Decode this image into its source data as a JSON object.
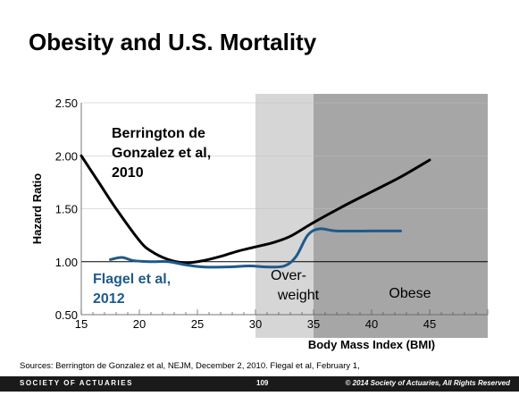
{
  "slide": {
    "title": "Obesity and U.S. Mortality",
    "sources": "Sources:  Berrington de Gonzalez  et al, NEJM, December  2, 2010. Flegal et al, February 1,",
    "footer_org": "SOCIETY OF ACTUARIES",
    "page_number": "109",
    "copyright": "© 2014 Society of Actuaries, All Rights Reserved"
  },
  "chart_data": {
    "type": "line",
    "xlabel": "Body Mass Index (BMI)",
    "ylabel": "Hazard Ratio",
    "xlim": [
      15,
      50
    ],
    "ylim": [
      0.5,
      2.5
    ],
    "x_ticks": [
      "15",
      "20",
      "25",
      "30",
      "35",
      "40",
      "45"
    ],
    "y_ticks": [
      "0.50",
      "1.00",
      "1.50",
      "2.00",
      "2.50"
    ],
    "grid": true,
    "reference_line_y": 1.0,
    "regions": [
      {
        "label": "Over-\nweight",
        "from": 30,
        "to": 35,
        "color": "#d6d6d6"
      },
      {
        "label": "Obese",
        "from": 35,
        "to": 50,
        "color": "#a6a6a6"
      }
    ],
    "series": [
      {
        "name": "Berrington de Gonzalez et al, 2010",
        "label_lines": [
          "Berrington de",
          "Gonzalez et al,",
          "2010"
        ],
        "color": "#000000",
        "points": [
          [
            15,
            2.0
          ],
          [
            16.5,
            1.75
          ],
          [
            18,
            1.5
          ],
          [
            20,
            1.2
          ],
          [
            21,
            1.1
          ],
          [
            22.5,
            1.02
          ],
          [
            24,
            0.99
          ],
          [
            25.5,
            1.01
          ],
          [
            27,
            1.05
          ],
          [
            28.5,
            1.1
          ],
          [
            30,
            1.14
          ],
          [
            31.5,
            1.18
          ],
          [
            33,
            1.24
          ],
          [
            35,
            1.37
          ],
          [
            37.5,
            1.52
          ],
          [
            40,
            1.66
          ],
          [
            42.5,
            1.8
          ],
          [
            45,
            1.96
          ]
        ]
      },
      {
        "name": "Flagel et al, 2012",
        "label_lines": [
          "Flagel et al,",
          "2012"
        ],
        "color": "#1f5a8a",
        "points": [
          [
            17.5,
            1.02
          ],
          [
            18.5,
            1.04
          ],
          [
            19.5,
            1.01
          ],
          [
            21,
            1.0
          ],
          [
            22.5,
            1.0
          ],
          [
            24,
            0.97
          ],
          [
            25.5,
            0.95
          ],
          [
            27.5,
            0.95
          ],
          [
            29.5,
            0.96
          ],
          [
            31,
            0.95
          ],
          [
            32.5,
            0.96
          ],
          [
            33.5,
            1.05
          ],
          [
            34.5,
            1.25
          ],
          [
            35.5,
            1.31
          ],
          [
            37,
            1.29
          ],
          [
            40,
            1.29
          ],
          [
            42.5,
            1.29
          ]
        ]
      }
    ]
  }
}
